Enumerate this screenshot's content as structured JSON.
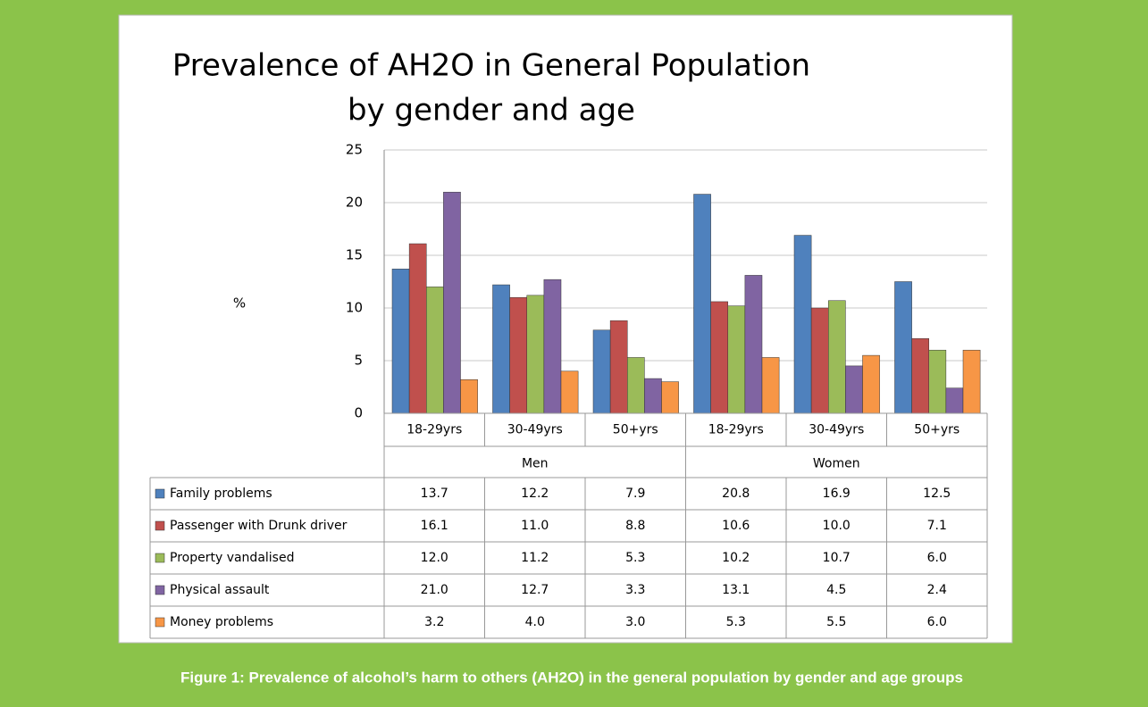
{
  "chart_data": {
    "type": "bar",
    "title": [
      "Prevalence of AH2O in General Population",
      "by gender and age"
    ],
    "ylabel": "%",
    "caption": "Figure 1: Prevalence of alcohol’s harm to others (AH2O) in the general population by gender and age groups",
    "categories": [
      "18-29yrs",
      "30-49yrs",
      "50+yrs",
      "18-29yrs",
      "30-49yrs",
      "50+yrs"
    ],
    "groups": [
      "Men",
      "Women"
    ],
    "ylim": [
      0,
      25
    ],
    "yticks": [
      0,
      5,
      10,
      15,
      20,
      25
    ],
    "grid": true,
    "series": [
      {
        "name": "Family problems",
        "color": "#4f81bd",
        "values": [
          13.7,
          12.2,
          7.9,
          20.8,
          16.9,
          12.5
        ],
        "value_labels": [
          "13.7",
          "12.2",
          "7.9",
          "20.8",
          "16.9",
          "12.5"
        ]
      },
      {
        "name": "Passenger with Drunk driver",
        "color": "#c0504d",
        "values": [
          16.1,
          11,
          8.8,
          10.6,
          10,
          7.1
        ],
        "value_labels": [
          "16.1",
          "11.0",
          "8.8",
          "10.6",
          "10.0",
          "7.1"
        ]
      },
      {
        "name": "Property vandalised",
        "color": "#9bbb59",
        "values": [
          12,
          11.2,
          5.3,
          10.2,
          10.7,
          6
        ],
        "value_labels": [
          "12.0",
          "11.2",
          "5.3",
          "10.2",
          "10.7",
          "6.0"
        ]
      },
      {
        "name": "Physical assault",
        "color": "#8064a2",
        "values": [
          21,
          12.7,
          3.3,
          13.1,
          4.5,
          2.4
        ],
        "value_labels": [
          "21.0",
          "12.7",
          "3.3",
          "13.1",
          "4.5",
          "2.4"
        ]
      },
      {
        "name": "Money problems",
        "color": "#f79646",
        "values": [
          3.2,
          4,
          3,
          5.3,
          5.5,
          6
        ],
        "value_labels": [
          "3.2",
          "4.0",
          "3.0",
          "5.3",
          "5.5",
          "6.0"
        ]
      }
    ]
  }
}
